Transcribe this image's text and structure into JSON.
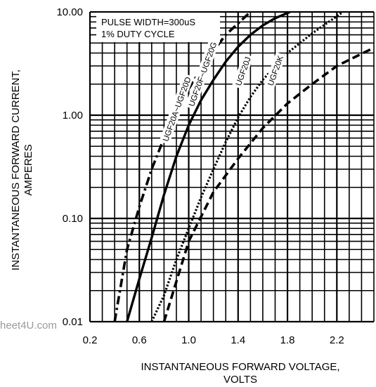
{
  "chart_data": {
    "type": "line",
    "title": "",
    "xlabel_lines": [
      "INSTANTANEOUS FORWARD VOLTAGE,",
      "VOLTS"
    ],
    "ylabel_lines": [
      "INSTANTANEOUS FORWARD CURRENT,",
      "AMPERES"
    ],
    "x_range": [
      0.2,
      2.5
    ],
    "y_range": [
      0.01,
      10
    ],
    "y_scale": "log",
    "grid": true,
    "x_ticks": [
      {
        "value": 0.2,
        "label": "0.2"
      },
      {
        "value": 0.6,
        "label": "0.6"
      },
      {
        "value": 1.0,
        "label": "1.0"
      },
      {
        "value": 1.4,
        "label": "1.4"
      },
      {
        "value": 1.8,
        "label": "1.8"
      },
      {
        "value": 2.2,
        "label": "2.2"
      }
    ],
    "y_ticks": [
      {
        "value": 0.01,
        "label": "0.01"
      },
      {
        "value": 0.1,
        "label": "0.10"
      },
      {
        "value": 1,
        "label": "1.00"
      },
      {
        "value": 10,
        "label": "10.00"
      }
    ],
    "annotation_lines": [
      "PULSE WIDTH=300uS",
      "1% DUTY CYCLE"
    ],
    "series": [
      {
        "name": "UGF20A~UGF20D",
        "dash": "dashdot",
        "label_at": {
          "x": 0.83,
          "y": 0.55
        },
        "x": [
          0.4,
          0.5,
          0.6,
          0.7,
          0.8,
          0.9,
          1.0,
          1.1,
          1.2,
          1.3,
          1.5
        ],
        "y": [
          0.01,
          0.05,
          0.13,
          0.3,
          0.6,
          1.1,
          1.8,
          2.8,
          4.2,
          6,
          10
        ]
      },
      {
        "name": "UGF20F~UGF20G",
        "dash": "solid",
        "label_at": {
          "x": 1.04,
          "y": 1.2
        },
        "x": [
          0.5,
          0.6,
          0.7,
          0.8,
          0.9,
          1.0,
          1.1,
          1.2,
          1.3,
          1.4,
          1.5,
          1.6,
          1.7,
          1.82
        ],
        "y": [
          0.01,
          0.026,
          0.065,
          0.17,
          0.4,
          0.8,
          1.4,
          2.2,
          3.3,
          4.6,
          6,
          7.4,
          8.7,
          10
        ]
      },
      {
        "name": "UGF20J",
        "dash": "dotted",
        "label_at": {
          "x": 1.42,
          "y": 1.9
        },
        "x": [
          0.7,
          0.8,
          0.9,
          1.0,
          1.1,
          1.2,
          1.3,
          1.4,
          1.5,
          1.6,
          1.8,
          2.0,
          2.25
        ],
        "y": [
          0.01,
          0.018,
          0.04,
          0.08,
          0.16,
          0.3,
          0.55,
          0.95,
          1.5,
          2.2,
          4,
          6.2,
          10
        ]
      },
      {
        "name": "UGF20K",
        "dash": "dashed",
        "label_at": {
          "x": 1.68,
          "y": 1.9
        },
        "x": [
          0.8,
          1.0,
          1.2,
          1.4,
          1.6,
          1.8,
          2.0,
          2.2,
          2.5
        ],
        "y": [
          0.01,
          0.06,
          0.18,
          0.38,
          0.75,
          1.3,
          2,
          3,
          4.5
        ]
      }
    ]
  },
  "watermark": "heet4U.com"
}
